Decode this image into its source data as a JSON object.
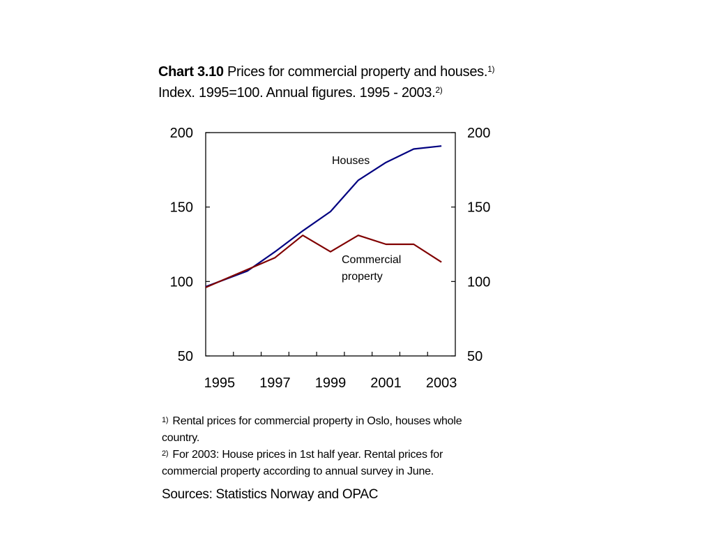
{
  "header": {
    "chart_number": "Chart 3.10",
    "title": "Prices for commercial property and houses.",
    "title_note_mark": "1)",
    "subtitle": "Index. 1995=100. Annual figures. 1995 - 2003.",
    "subtitle_note_mark": "2)"
  },
  "chart_data": {
    "type": "line",
    "x": [
      1995,
      1996,
      1997,
      1998,
      1999,
      2000,
      2001,
      2002,
      2003
    ],
    "x_tick_labels": [
      "1995",
      "1997",
      "1999",
      "2001",
      "2003"
    ],
    "y_tick_labels": [
      "200",
      "150",
      "100",
      "50"
    ],
    "ylim": [
      50,
      200
    ],
    "y_ticks": [
      50,
      100,
      150,
      200
    ],
    "secondary_y_axis": true,
    "grid": false,
    "legend": "inline labels",
    "xlabel": "",
    "ylabel": "",
    "series": [
      {
        "name": "Houses",
        "color": "#000080",
        "values": [
          100,
          107,
          120,
          134,
          147,
          168,
          180,
          189,
          191
        ]
      },
      {
        "name": "Commercial property",
        "color": "#800000",
        "values": [
          100,
          108,
          116,
          131,
          120,
          131,
          125,
          125,
          113
        ]
      }
    ],
    "series_labels": {
      "houses": "Houses",
      "commercial_line1": "Commercial",
      "commercial_line2": "property"
    }
  },
  "footnotes": [
    {
      "mark": "1)",
      "text": "Rental prices for commercial property in Oslo, houses whole country."
    },
    {
      "mark": "2)",
      "text": "For 2003: House prices in 1st half year. Rental prices for commercial property according to annual survey in June."
    }
  ],
  "sources": "Sources: Statistics Norway and OPAC"
}
